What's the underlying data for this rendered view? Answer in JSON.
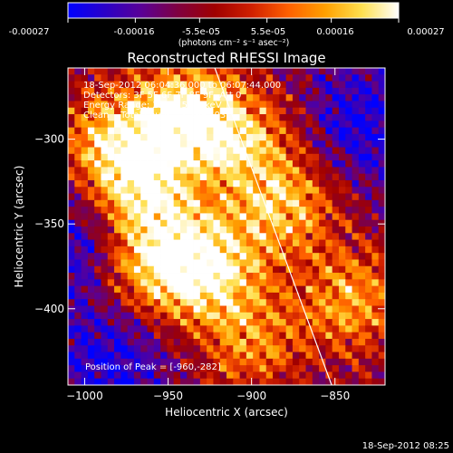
{
  "colorbar": {
    "tick_labels": [
      "-0.00027",
      "-0.00016",
      "-5.5e-05",
      "5.5e-05",
      "0.00016",
      "0.00027"
    ],
    "tick_values": [
      -0.00027,
      -0.00016,
      -5.5e-05,
      5.5e-05,
      0.00016,
      0.00027
    ],
    "range": [
      -0.00027,
      0.00027
    ],
    "units": "(photons cm⁻² s⁻¹ asec⁻²)",
    "stops": [
      "#0000ff",
      "#2a00c8",
      "#5a0096",
      "#800040",
      "#a00000",
      "#d02000",
      "#ff6000",
      "#ffa000",
      "#ffe050",
      "#ffffff"
    ]
  },
  "annotations": {
    "line1": "18-Sep-2012 06:04:36.000 to 06:07:44.000",
    "line2": "Detectors: 3F 5F 6F 7F 8F 9F, Att 0",
    "line3": "Energy Range: 25.0 - 50.0 keV",
    "line4": "Clean    Total counts: 3.16E+03",
    "peak": "Position of Peak = [-960,-282]"
  },
  "footer_timestamp": "18-Sep-2012 08:25",
  "chart_data": {
    "type": "heatmap",
    "title": "Reconstructed RHESSI Image",
    "xlabel": "Heliocentric X (arcsec)",
    "ylabel": "Heliocentric Y (arcsec)",
    "xlim": [
      -1010,
      -820
    ],
    "ylim": [
      -445,
      -258
    ],
    "xticks": [
      -1000,
      -950,
      -900,
      -850
    ],
    "yticks": [
      -300,
      -350,
      -400
    ],
    "xtick_labels": [
      "−1000",
      "−950",
      "−900",
      "−850"
    ],
    "ytick_labels": [
      "−300",
      "−350",
      "−400"
    ],
    "grid_cells": 48,
    "limb_line": [
      [
        -922,
        -258
      ],
      [
        -852,
        -445
      ]
    ],
    "peak_position": [
      -960,
      -282
    ],
    "bright_sources": [
      {
        "x": -940,
        "y": -285,
        "level": 1.0
      },
      {
        "x": -965,
        "y": -330,
        "level": 0.9
      },
      {
        "x": -925,
        "y": -375,
        "level": 0.95
      },
      {
        "x": -960,
        "y": -375,
        "level": 0.8
      },
      {
        "x": -880,
        "y": -340,
        "level": 0.75
      },
      {
        "x": -985,
        "y": -300,
        "level": 0.7
      },
      {
        "x": -905,
        "y": -300,
        "level": 0.7
      },
      {
        "x": -840,
        "y": -395,
        "level": 0.7
      },
      {
        "x": -900,
        "y": -420,
        "level": 0.6
      }
    ],
    "dim_regions": [
      {
        "x": -985,
        "y": -430
      },
      {
        "x": -835,
        "y": -290
      },
      {
        "x": -1000,
        "y": -360
      }
    ]
  }
}
